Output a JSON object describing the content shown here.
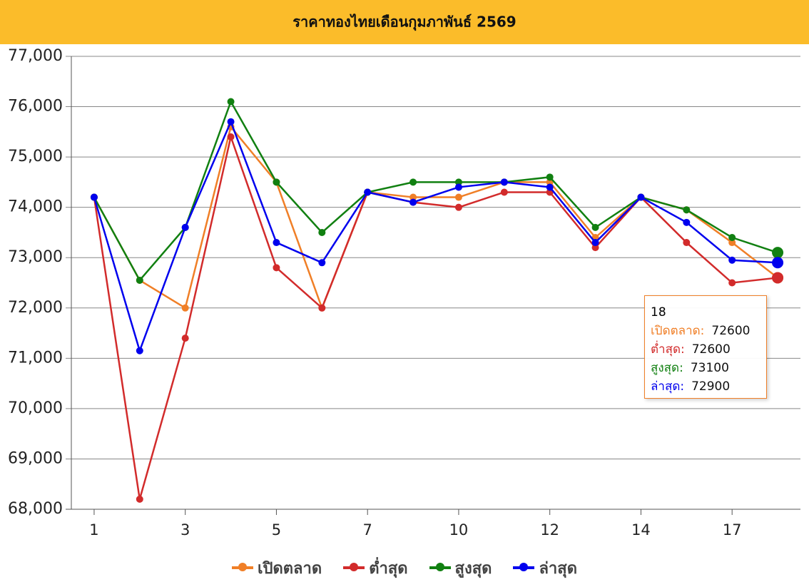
{
  "chart_data": {
    "type": "line",
    "title": "ราคาทองไทยเดือนกุมภาพันธ์ 2569",
    "categories": [
      "1",
      null,
      "3",
      null,
      "5",
      null,
      "7",
      null,
      "10",
      null,
      "12",
      null,
      "14",
      null,
      "17",
      null
    ],
    "series": [
      {
        "name": "เปิดตลาด",
        "color": "#f07f27",
        "values": [
          74200,
          72550,
          72000,
          75600,
          74500,
          72000,
          74300,
          74200,
          74200,
          74500,
          74500,
          73400,
          74200,
          73950,
          73300,
          72600
        ]
      },
      {
        "name": "ต่ำสุด",
        "color": "#d22b2b",
        "values": [
          74200,
          68200,
          71400,
          75400,
          72800,
          72000,
          74300,
          74100,
          74000,
          74300,
          74300,
          73200,
          74200,
          73300,
          72500,
          72600
        ]
      },
      {
        "name": "สูงสุด",
        "color": "#118011",
        "values": [
          74200,
          72550,
          73600,
          76100,
          74500,
          73500,
          74300,
          74500,
          74500,
          74500,
          74600,
          73600,
          74200,
          73950,
          73400,
          73100
        ]
      },
      {
        "name": "ล่าสุด",
        "color": "#0000ee",
        "values": [
          74200,
          71150,
          73600,
          75700,
          73300,
          72900,
          74300,
          74100,
          74400,
          74500,
          74400,
          73300,
          74200,
          73700,
          72950,
          72900
        ]
      }
    ],
    "ylim": [
      68000,
      77000
    ],
    "yticks": [
      {
        "value": 68000,
        "label": "68,000"
      },
      {
        "value": 69000,
        "label": "69,000"
      },
      {
        "value": 70000,
        "label": "70,000"
      },
      {
        "value": 71000,
        "label": "71,000"
      },
      {
        "value": 72000,
        "label": "72,000"
      },
      {
        "value": 73000,
        "label": "73,000"
      },
      {
        "value": 74000,
        "label": "74,000"
      },
      {
        "value": 75000,
        "label": "75,000"
      },
      {
        "value": 76000,
        "label": "76,000"
      },
      {
        "value": 77000,
        "label": "77,000"
      }
    ],
    "grid": true,
    "legend": "bottom",
    "header_color": "#fbbc2a",
    "tooltip": {
      "index": 15,
      "title": "18",
      "labels": [
        "เปิดตลาด:",
        "ต่ำสุด:",
        "สูงสุด:",
        "ล่าสุด:"
      ]
    }
  }
}
